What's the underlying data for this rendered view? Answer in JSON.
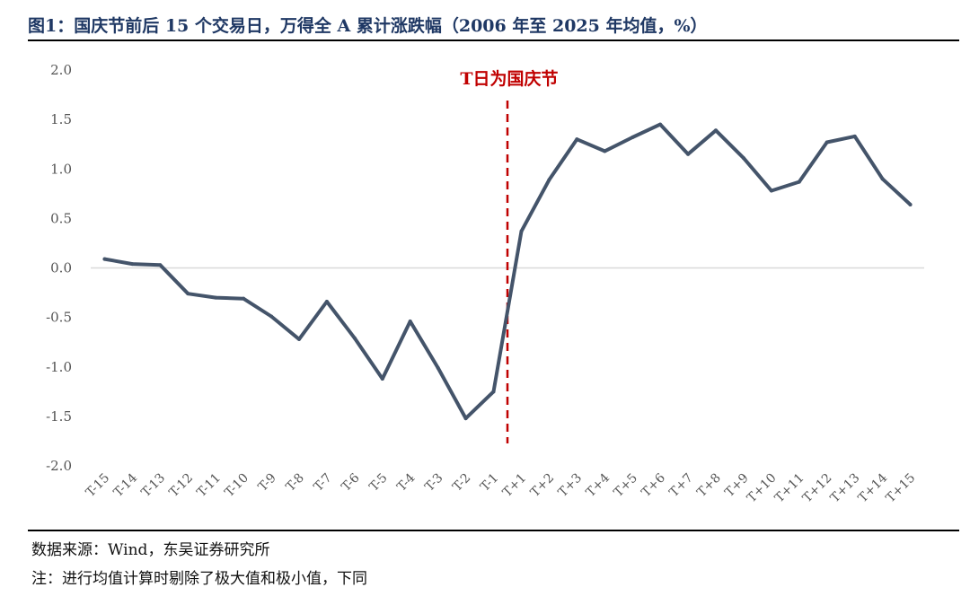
{
  "header": {
    "title": "图1：国庆节前后 15 个交易日，万得全 A 累计涨跌幅（2006 年至 2025 年均值，%）"
  },
  "footer": {
    "source": "数据来源：Wind，东吴证券研究所",
    "note": "注：进行均值计算时剔除了极大值和极小值，下同"
  },
  "chart_data": {
    "type": "line",
    "title": "",
    "xlabel": "",
    "ylabel": "",
    "ylim": [
      -2.0,
      2.0
    ],
    "yticks": [
      "2.0",
      "1.5",
      "1.0",
      "0.5",
      "0.0",
      "-0.5",
      "-1.0",
      "-1.5",
      "-2.0"
    ],
    "grid": false,
    "categories": [
      "T-15",
      "T-14",
      "T-13",
      "T-12",
      "T-11",
      "T-10",
      "T-9",
      "T-8",
      "T-7",
      "T-6",
      "T-5",
      "T-4",
      "T-3",
      "T-2",
      "T-1",
      "T+1",
      "T+2",
      "T+3",
      "T+4",
      "T+5",
      "T+6",
      "T+7",
      "T+8",
      "T+9",
      "T+10",
      "T+11",
      "T+12",
      "T+13",
      "T+14",
      "T+15"
    ],
    "series": [
      {
        "color": "#44546a",
        "values": [
          0.09,
          0.04,
          0.03,
          -0.26,
          -0.3,
          -0.31,
          -0.49,
          -0.72,
          -0.34,
          -0.71,
          -1.12,
          -0.54,
          -1.01,
          -1.52,
          -1.25,
          0.37,
          0.89,
          1.3,
          1.18,
          1.32,
          1.45,
          1.15,
          1.39,
          1.11,
          0.78,
          0.87,
          1.27,
          1.33,
          0.9,
          0.64
        ]
      }
    ],
    "annotation": {
      "text": "T日为国庆节",
      "after_category": "T-1",
      "color": "#c00000"
    }
  }
}
